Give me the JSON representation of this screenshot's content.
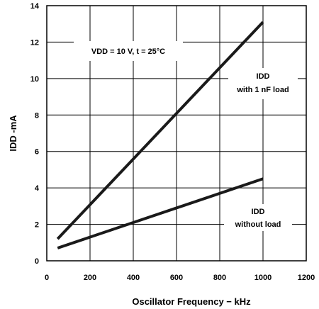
{
  "chart_data": {
    "type": "line",
    "title": "",
    "xlabel": "Oscillator Frequency − kHz",
    "ylabel": "IDD -mA",
    "xlim": [
      0,
      1200
    ],
    "ylim": [
      0,
      14
    ],
    "xticks": [
      "0",
      "200",
      "400",
      "600",
      "800",
      "1000",
      "1200"
    ],
    "yticks": [
      "0",
      "2",
      "4",
      "6",
      "8",
      "10",
      "12",
      "14"
    ],
    "grid": true,
    "series": [
      {
        "name": "IDD with 1 nF load",
        "x": [
          50,
          1000
        ],
        "y": [
          1.2,
          13.1
        ]
      },
      {
        "name": "IDD without load",
        "x": [
          50,
          1000
        ],
        "y": [
          0.7,
          4.5
        ]
      }
    ],
    "annotations": {
      "condition": "VDD = 10 V, t = 25°C",
      "load_line1": "IDD",
      "load_line2": "with 1 nF load",
      "noload_line1": "IDD",
      "noload_line2": "without load"
    },
    "colors": {
      "line": "#1a1a1a",
      "grid": "#000000"
    }
  }
}
